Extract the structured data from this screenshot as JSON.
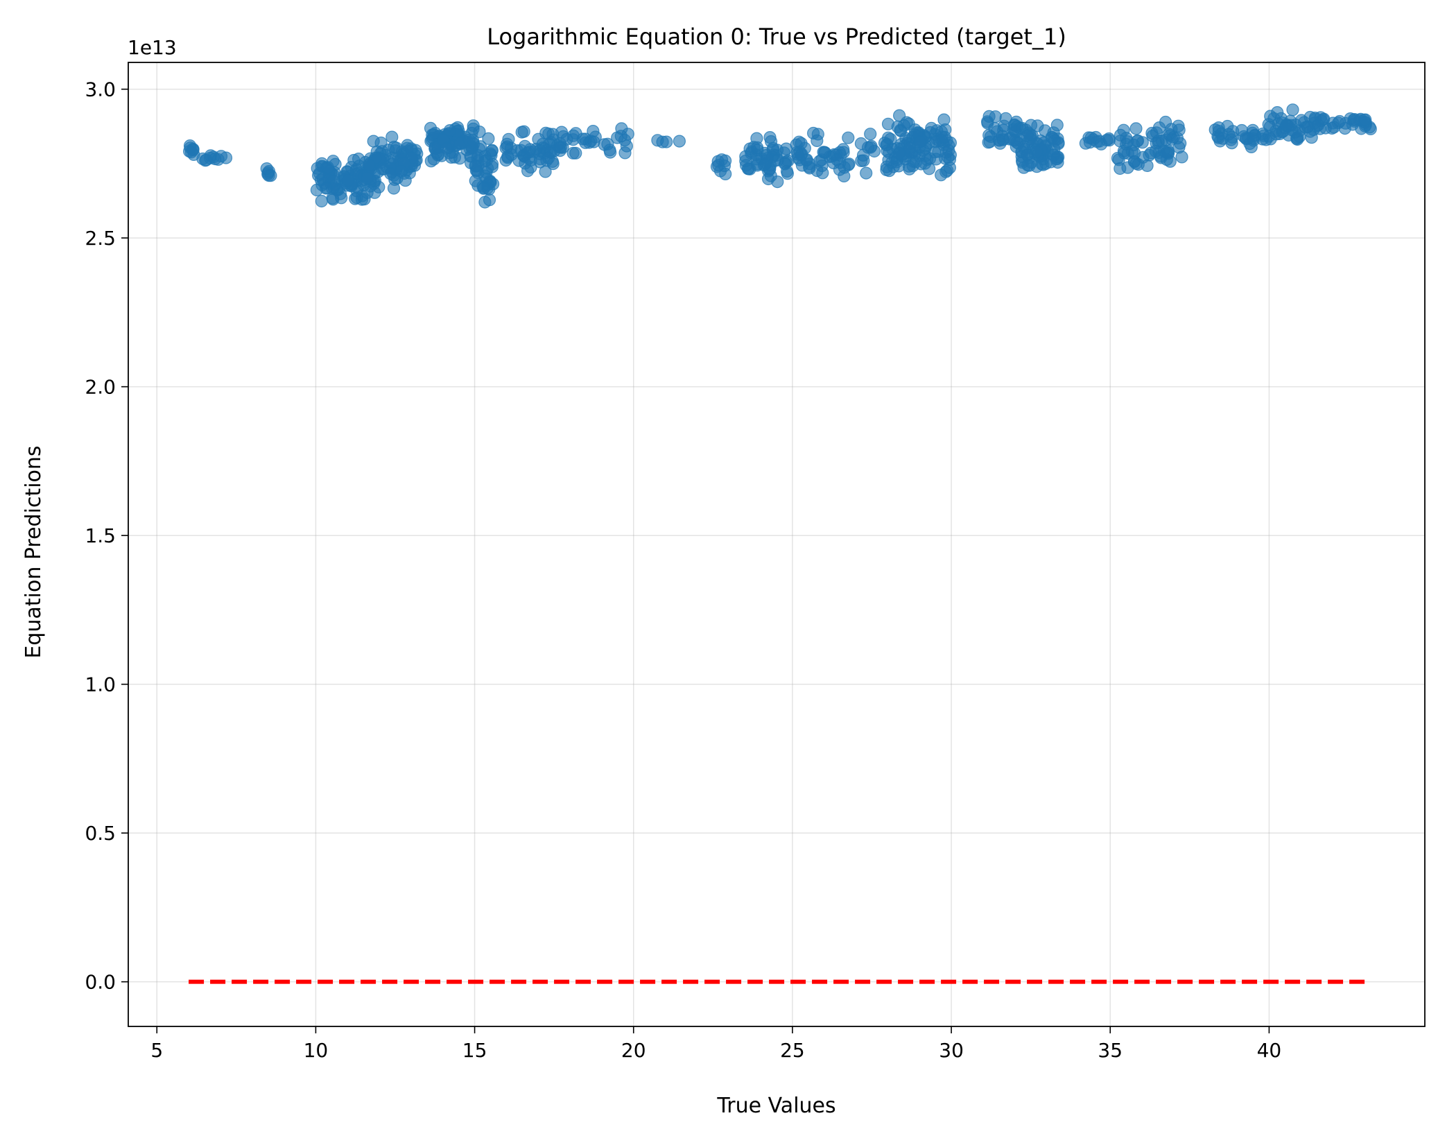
{
  "chart_data": {
    "type": "scatter",
    "title": "Logarithmic Equation 0: True vs Predicted (target_1)",
    "xlabel": "True Values",
    "ylabel": "Equation Predictions",
    "y_offset_label": "1e13",
    "xlim": [
      4.1,
      44.9
    ],
    "ylim": [
      -0.15,
      3.09
    ],
    "x_ticks": [
      5,
      10,
      15,
      20,
      25,
      30,
      35,
      40
    ],
    "x_tick_labels": [
      "5",
      "10",
      "15",
      "20",
      "25",
      "30",
      "35",
      "40"
    ],
    "y_ticks": [
      0.0,
      0.5,
      1.0,
      1.5,
      2.0,
      2.5,
      3.0
    ],
    "y_tick_labels": [
      "0.0",
      "0.5",
      "1.0",
      "1.5",
      "2.0",
      "2.5",
      "3.0"
    ],
    "grid": true,
    "point_color": "#1f77b4",
    "reference_line": {
      "style": "dashed",
      "color": "#ff0000",
      "x": [
        6.0,
        43.1
      ],
      "y": [
        0.0,
        0.0
      ]
    },
    "series": [
      {
        "clusters": [
          {
            "x": [
              6.0,
              6.2
            ],
            "y": [
              2.76,
              2.82
            ],
            "n": 8
          },
          {
            "x": [
              6.3,
              7.2
            ],
            "y": [
              2.75,
              2.79
            ],
            "n": 10
          },
          {
            "x": [
              8.4,
              8.6
            ],
            "y": [
              2.68,
              2.75
            ],
            "n": 6
          },
          {
            "x": [
              10.0,
              11.9
            ],
            "y": [
              2.6,
              2.79
            ],
            "n": 90
          },
          {
            "x": [
              11.6,
              13.2
            ],
            "y": [
              2.65,
              2.86
            ],
            "n": 85
          },
          {
            "x": [
              13.6,
              15.0
            ],
            "y": [
              2.73,
              2.91
            ],
            "n": 80
          },
          {
            "x": [
              15.0,
              15.6
            ],
            "y": [
              2.6,
              2.89
            ],
            "n": 40
          },
          {
            "x": [
              15.8,
              17.8
            ],
            "y": [
              2.7,
              2.89
            ],
            "n": 60
          },
          {
            "x": [
              17.8,
              20.0
            ],
            "y": [
              2.77,
              2.88
            ],
            "n": 25
          },
          {
            "x": [
              20.6,
              21.5
            ],
            "y": [
              2.82,
              2.83
            ],
            "n": 4
          },
          {
            "x": [
              22.6,
              23.0
            ],
            "y": [
              2.7,
              2.8
            ],
            "n": 8
          },
          {
            "x": [
              23.5,
              24.9
            ],
            "y": [
              2.66,
              2.86
            ],
            "n": 50
          },
          {
            "x": [
              25.0,
              26.8
            ],
            "y": [
              2.68,
              2.88
            ],
            "n": 45
          },
          {
            "x": [
              27.0,
              27.6
            ],
            "y": [
              2.69,
              2.89
            ],
            "n": 10
          },
          {
            "x": [
              27.9,
              28.9
            ],
            "y": [
              2.66,
              2.93
            ],
            "n": 55
          },
          {
            "x": [
              28.9,
              30.0
            ],
            "y": [
              2.66,
              2.93
            ],
            "n": 55
          },
          {
            "x": [
              31.1,
              32.2
            ],
            "y": [
              2.76,
              2.93
            ],
            "n": 35
          },
          {
            "x": [
              32.2,
              33.4
            ],
            "y": [
              2.67,
              2.92
            ],
            "n": 70
          },
          {
            "x": [
              34.0,
              35.2
            ],
            "y": [
              2.8,
              2.85
            ],
            "n": 12
          },
          {
            "x": [
              35.2,
              36.4
            ],
            "y": [
              2.69,
              2.92
            ],
            "n": 30
          },
          {
            "x": [
              36.4,
              37.3
            ],
            "y": [
              2.7,
              2.93
            ],
            "n": 30
          },
          {
            "x": [
              38.3,
              39.9
            ],
            "y": [
              2.79,
              2.89
            ],
            "n": 30
          },
          {
            "x": [
              39.9,
              41.5
            ],
            "y": [
              2.8,
              2.94
            ],
            "n": 45
          },
          {
            "x": [
              41.5,
              43.2
            ],
            "y": [
              2.83,
              2.94
            ],
            "n": 30
          }
        ]
      }
    ]
  }
}
